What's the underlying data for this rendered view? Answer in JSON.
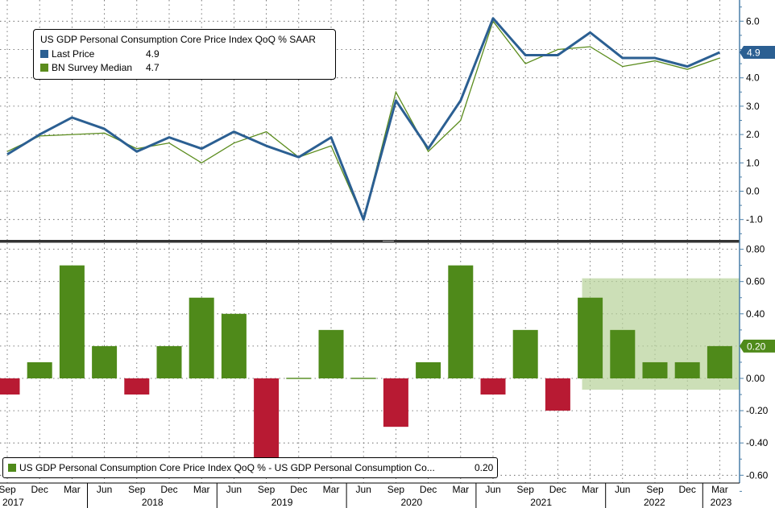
{
  "colors": {
    "last_price": "#2b5f92",
    "survey": "#5b8c1d",
    "bar_pos": "#4f8a1a",
    "bar_neg": "#b81a33",
    "highlight": "#b9d39b",
    "axis": "#4a7fa8"
  },
  "top_legend": {
    "title": "US GDP Personal Consumption Core Price Index QoQ % SAAR",
    "series1_label": "Last Price",
    "series1_value": "4.9",
    "series2_label": "BN Survey Median",
    "series2_value": "4.7"
  },
  "bottom_legend": {
    "label": "US GDP Personal Consumption Core Price Index QoQ % - US GDP Personal Consumption Co...",
    "value": "0.20"
  },
  "chart_data": [
    {
      "type": "line",
      "title": "US GDP Personal Consumption Core Price Index QoQ % SAAR",
      "ylim": [
        -1.6,
        6.9
      ],
      "yticks": [
        "6.0",
        "5.0",
        "4.0",
        "3.0",
        "2.0",
        "1.0",
        "0.0",
        "-1.0"
      ],
      "last_value_label": "4.9",
      "series": [
        {
          "name": "Last Price",
          "values": [
            1.3,
            2.0,
            2.6,
            2.2,
            1.4,
            1.9,
            1.5,
            2.1,
            1.6,
            1.2,
            1.9,
            -1.0,
            3.2,
            1.5,
            3.2,
            6.1,
            4.8,
            4.8,
            5.6,
            4.7,
            4.7,
            4.4,
            4.9
          ]
        },
        {
          "name": "BN Survey Median",
          "values": [
            1.4,
            1.95,
            2.0,
            2.05,
            1.5,
            1.7,
            1.0,
            1.7,
            2.1,
            1.2,
            1.6,
            -1.0,
            3.5,
            1.4,
            2.5,
            6.0,
            4.5,
            5.0,
            5.1,
            4.4,
            4.6,
            4.3,
            4.7
          ]
        }
      ]
    },
    {
      "type": "bar",
      "title": "US GDP Personal Consumption Core Price Index QoQ % - US GDP Personal Consumption Core Price Index QoQ % Survey",
      "ylim": [
        -0.62,
        0.85
      ],
      "yticks": [
        "0.80",
        "0.60",
        "0.40",
        "0.20",
        "0.00",
        "-0.20",
        "-0.40",
        "-0.60"
      ],
      "last_value_label": "0.20",
      "values": [
        -0.1,
        0.1,
        0.7,
        0.2,
        -0.1,
        0.2,
        0.5,
        0.4,
        -0.5,
        0.0,
        0.3,
        0.0,
        -0.3,
        0.1,
        0.7,
        -0.1,
        0.3,
        -0.2,
        0.5,
        0.3,
        0.1,
        0.1,
        0.2
      ],
      "highlight_range": {
        "from_index": 17.75,
        "to_index": 23,
        "y_from": -0.07,
        "y_to": 0.62
      }
    }
  ],
  "x_axis": {
    "quarter_labels": [
      "Sep",
      "Dec",
      "Mar",
      "Jun",
      "Sep",
      "Dec",
      "Mar",
      "Jun",
      "Sep",
      "Dec",
      "Mar",
      "Jun",
      "Sep",
      "Dec",
      "Mar",
      "Jun",
      "Sep",
      "Dec",
      "Mar",
      "Jun",
      "Sep",
      "Dec",
      "Mar"
    ],
    "year_labels": [
      {
        "text": "2017",
        "index": 0
      },
      {
        "text": "2018",
        "index": 3
      },
      {
        "text": "2019",
        "index": 7
      },
      {
        "text": "2020",
        "index": 11
      },
      {
        "text": "2021",
        "index": 15
      },
      {
        "text": "2022",
        "index": 19
      },
      {
        "text": "2023",
        "index": 22
      }
    ]
  }
}
